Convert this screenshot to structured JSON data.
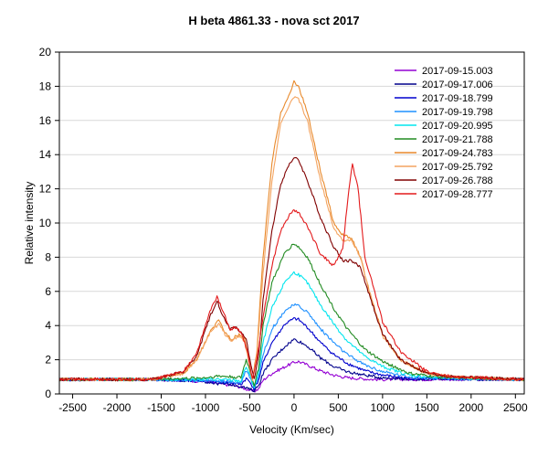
{
  "chart_data": {
    "type": "line",
    "title": "H beta  4861.33 - nova sct 2017",
    "xlabel": "Velocity (Km/sec)",
    "ylabel": "Relative intensity",
    "xlim": [
      -2650,
      2600
    ],
    "ylim": [
      0,
      20
    ],
    "xticks": [
      -2500,
      -2000,
      -1500,
      -1000,
      -500,
      0,
      500,
      1000,
      1500,
      2000,
      2500
    ],
    "xtick_labels": [
      "-2500",
      "-2000",
      "-1500",
      "-1000",
      "-500",
      "0",
      "500",
      "1000",
      "1500",
      "2000",
      "2500"
    ],
    "yticks": [
      0,
      2,
      4,
      6,
      8,
      10,
      12,
      14,
      16,
      18,
      20
    ],
    "ytick_labels": [
      "0",
      "2",
      "4",
      "6",
      "8",
      "10",
      "12",
      "14",
      "16",
      "18",
      "20"
    ],
    "legend_position": "top-right",
    "series": [
      {
        "name": "2017-09-15.003",
        "color": "#9400d3",
        "points": [
          [
            -2650,
            0.85
          ],
          [
            -1600,
            0.85
          ],
          [
            -1250,
            0.8
          ],
          [
            -1000,
            0.72
          ],
          [
            -850,
            0.6
          ],
          [
            -700,
            0.5
          ],
          [
            -600,
            0.4
          ],
          [
            -520,
            0.25
          ],
          [
            -450,
            0.15
          ],
          [
            -400,
            0.3
          ],
          [
            -350,
            0.8
          ],
          [
            -250,
            1.2
          ],
          [
            -100,
            1.6
          ],
          [
            0,
            1.85
          ],
          [
            50,
            1.9
          ],
          [
            150,
            1.7
          ],
          [
            300,
            1.35
          ],
          [
            450,
            1.1
          ],
          [
            600,
            0.95
          ],
          [
            900,
            0.85
          ],
          [
            2600,
            0.85
          ]
        ]
      },
      {
        "name": "2017-09-17.006",
        "color": "#00008b",
        "points": [
          [
            -2650,
            0.85
          ],
          [
            -1600,
            0.85
          ],
          [
            -1250,
            0.8
          ],
          [
            -1000,
            0.72
          ],
          [
            -850,
            0.6
          ],
          [
            -700,
            0.55
          ],
          [
            -600,
            0.45
          ],
          [
            -520,
            0.3
          ],
          [
            -450,
            0.2
          ],
          [
            -400,
            0.5
          ],
          [
            -350,
            1.2
          ],
          [
            -250,
            2.0
          ],
          [
            -100,
            2.8
          ],
          [
            0,
            3.2
          ],
          [
            50,
            3.1
          ],
          [
            150,
            2.8
          ],
          [
            300,
            2.1
          ],
          [
            450,
            1.6
          ],
          [
            600,
            1.3
          ],
          [
            800,
            1.1
          ],
          [
            1000,
            0.95
          ],
          [
            1300,
            0.88
          ],
          [
            2600,
            0.85
          ]
        ]
      },
      {
        "name": "2017-09-18.799",
        "color": "#0000cd",
        "points": [
          [
            -2650,
            0.85
          ],
          [
            -1600,
            0.85
          ],
          [
            -1250,
            0.8
          ],
          [
            -1000,
            0.75
          ],
          [
            -850,
            0.7
          ],
          [
            -700,
            0.65
          ],
          [
            -600,
            0.55
          ],
          [
            -540,
            0.9
          ],
          [
            -500,
            0.7
          ],
          [
            -450,
            0.3
          ],
          [
            -400,
            0.8
          ],
          [
            -350,
            1.8
          ],
          [
            -250,
            3.0
          ],
          [
            -100,
            4.1
          ],
          [
            0,
            4.4
          ],
          [
            50,
            4.35
          ],
          [
            150,
            3.9
          ],
          [
            300,
            3.0
          ],
          [
            450,
            2.3
          ],
          [
            600,
            1.8
          ],
          [
            800,
            1.35
          ],
          [
            1000,
            1.1
          ],
          [
            1300,
            0.9
          ],
          [
            2600,
            0.85
          ]
        ]
      },
      {
        "name": "2017-09-19.798",
        "color": "#1e90ff",
        "points": [
          [
            -2650,
            0.85
          ],
          [
            -1600,
            0.85
          ],
          [
            -1250,
            0.8
          ],
          [
            -1000,
            0.8
          ],
          [
            -850,
            0.75
          ],
          [
            -700,
            0.7
          ],
          [
            -600,
            0.65
          ],
          [
            -540,
            1.4
          ],
          [
            -500,
            1.0
          ],
          [
            -450,
            0.4
          ],
          [
            -400,
            1.0
          ],
          [
            -350,
            2.3
          ],
          [
            -250,
            3.8
          ],
          [
            -100,
            4.9
          ],
          [
            0,
            5.2
          ],
          [
            50,
            5.15
          ],
          [
            150,
            4.8
          ],
          [
            300,
            3.8
          ],
          [
            450,
            3.0
          ],
          [
            600,
            2.3
          ],
          [
            800,
            1.7
          ],
          [
            1000,
            1.3
          ],
          [
            1300,
            1.0
          ],
          [
            1600,
            0.9
          ],
          [
            2600,
            0.85
          ]
        ]
      },
      {
        "name": "2017-09-20.995",
        "color": "#00e5ee",
        "points": [
          [
            -2650,
            0.85
          ],
          [
            -1600,
            0.85
          ],
          [
            -1250,
            0.85
          ],
          [
            -1000,
            0.85
          ],
          [
            -850,
            0.85
          ],
          [
            -700,
            0.8
          ],
          [
            -600,
            0.75
          ],
          [
            -540,
            1.6
          ],
          [
            -500,
            1.1
          ],
          [
            -450,
            0.4
          ],
          [
            -400,
            1.2
          ],
          [
            -350,
            3.0
          ],
          [
            -250,
            5.0
          ],
          [
            -100,
            6.6
          ],
          [
            0,
            7.1
          ],
          [
            50,
            7.0
          ],
          [
            150,
            6.5
          ],
          [
            300,
            5.2
          ],
          [
            450,
            4.1
          ],
          [
            600,
            3.1
          ],
          [
            800,
            2.2
          ],
          [
            1000,
            1.6
          ],
          [
            1300,
            1.1
          ],
          [
            1600,
            0.95
          ],
          [
            2600,
            0.85
          ]
        ]
      },
      {
        "name": "2017-09-21.788",
        "color": "#228b22",
        "points": [
          [
            -2650,
            0.85
          ],
          [
            -1600,
            0.85
          ],
          [
            -1250,
            0.9
          ],
          [
            -1000,
            0.95
          ],
          [
            -850,
            1.05
          ],
          [
            -700,
            1.0
          ],
          [
            -600,
            0.95
          ],
          [
            -540,
            2.0
          ],
          [
            -500,
            1.4
          ],
          [
            -450,
            0.5
          ],
          [
            -400,
            1.5
          ],
          [
            -350,
            4.0
          ],
          [
            -250,
            6.5
          ],
          [
            -100,
            8.3
          ],
          [
            0,
            8.8
          ],
          [
            50,
            8.6
          ],
          [
            150,
            8.0
          ],
          [
            300,
            6.4
          ],
          [
            450,
            5.0
          ],
          [
            600,
            3.8
          ],
          [
            800,
            2.6
          ],
          [
            1000,
            1.9
          ],
          [
            1300,
            1.2
          ],
          [
            1600,
            1.0
          ],
          [
            2600,
            0.85
          ]
        ]
      },
      {
        "name": "2017-09-24.783",
        "color": "#e8892b",
        "points": [
          [
            -2650,
            0.85
          ],
          [
            -1600,
            0.85
          ],
          [
            -1250,
            1.2
          ],
          [
            -1100,
            2.0
          ],
          [
            -950,
            3.6
          ],
          [
            -850,
            4.3
          ],
          [
            -780,
            3.6
          ],
          [
            -700,
            3.2
          ],
          [
            -620,
            3.5
          ],
          [
            -560,
            3.2
          ],
          [
            -520,
            2.2
          ],
          [
            -470,
            0.8
          ],
          [
            -420,
            2.5
          ],
          [
            -350,
            8.0
          ],
          [
            -250,
            13.5
          ],
          [
            -150,
            16.5
          ],
          [
            -50,
            17.5
          ],
          [
            0,
            18.3
          ],
          [
            50,
            18.0
          ],
          [
            150,
            16.5
          ],
          [
            300,
            13.0
          ],
          [
            450,
            10.0
          ],
          [
            550,
            9.3
          ],
          [
            650,
            9.1
          ],
          [
            750,
            8.0
          ],
          [
            850,
            6.0
          ],
          [
            1000,
            3.5
          ],
          [
            1200,
            2.0
          ],
          [
            1500,
            1.2
          ],
          [
            1800,
            1.0
          ],
          [
            2600,
            0.85
          ]
        ]
      },
      {
        "name": "2017-09-25.792",
        "color": "#f4a460",
        "points": [
          [
            -2650,
            0.85
          ],
          [
            -1600,
            0.85
          ],
          [
            -1250,
            1.2
          ],
          [
            -1100,
            2.0
          ],
          [
            -950,
            3.6
          ],
          [
            -850,
            4.1
          ],
          [
            -780,
            3.5
          ],
          [
            -700,
            3.1
          ],
          [
            -620,
            3.4
          ],
          [
            -560,
            3.1
          ],
          [
            -520,
            2.1
          ],
          [
            -470,
            0.8
          ],
          [
            -420,
            2.3
          ],
          [
            -350,
            7.0
          ],
          [
            -250,
            12.5
          ],
          [
            -150,
            15.8
          ],
          [
            -50,
            16.9
          ],
          [
            0,
            17.4
          ],
          [
            50,
            17.3
          ],
          [
            150,
            16.0
          ],
          [
            300,
            12.5
          ],
          [
            450,
            9.7
          ],
          [
            550,
            9.0
          ],
          [
            650,
            9.0
          ],
          [
            750,
            8.0
          ],
          [
            850,
            6.0
          ],
          [
            1000,
            3.4
          ],
          [
            1200,
            2.0
          ],
          [
            1500,
            1.2
          ],
          [
            1800,
            1.0
          ],
          [
            2600,
            0.85
          ]
        ]
      },
      {
        "name": "2017-09-26.788",
        "color": "#800000",
        "points": [
          [
            -2650,
            0.85
          ],
          [
            -1600,
            0.85
          ],
          [
            -1250,
            1.3
          ],
          [
            -1100,
            2.2
          ],
          [
            -950,
            4.5
          ],
          [
            -870,
            5.5
          ],
          [
            -800,
            4.5
          ],
          [
            -720,
            3.8
          ],
          [
            -650,
            3.9
          ],
          [
            -600,
            3.6
          ],
          [
            -540,
            3.2
          ],
          [
            -500,
            2.0
          ],
          [
            -450,
            0.9
          ],
          [
            -400,
            2.2
          ],
          [
            -350,
            5.5
          ],
          [
            -250,
            9.5
          ],
          [
            -150,
            12.3
          ],
          [
            -50,
            13.5
          ],
          [
            0,
            13.8
          ],
          [
            50,
            13.7
          ],
          [
            150,
            12.5
          ],
          [
            300,
            10.3
          ],
          [
            450,
            8.6
          ],
          [
            550,
            7.8
          ],
          [
            650,
            7.8
          ],
          [
            750,
            7.4
          ],
          [
            850,
            5.8
          ],
          [
            1000,
            3.5
          ],
          [
            1200,
            2.0
          ],
          [
            1500,
            1.2
          ],
          [
            1800,
            1.0
          ],
          [
            2600,
            0.85
          ]
        ]
      },
      {
        "name": "2017-09-28.777",
        "color": "#e31a1c",
        "points": [
          [
            -2650,
            0.85
          ],
          [
            -1600,
            0.85
          ],
          [
            -1250,
            1.3
          ],
          [
            -1100,
            2.4
          ],
          [
            -950,
            4.8
          ],
          [
            -870,
            5.7
          ],
          [
            -800,
            4.8
          ],
          [
            -720,
            3.8
          ],
          [
            -650,
            3.9
          ],
          [
            -580,
            3.4
          ],
          [
            -520,
            2.3
          ],
          [
            -470,
            0.9
          ],
          [
            -420,
            2.0
          ],
          [
            -350,
            4.5
          ],
          [
            -250,
            7.5
          ],
          [
            -150,
            9.5
          ],
          [
            -50,
            10.5
          ],
          [
            0,
            10.7
          ],
          [
            50,
            10.6
          ],
          [
            150,
            9.8
          ],
          [
            300,
            8.2
          ],
          [
            450,
            7.5
          ],
          [
            550,
            8.5
          ],
          [
            620,
            12.0
          ],
          [
            660,
            13.4
          ],
          [
            720,
            12.2
          ],
          [
            800,
            8.0
          ],
          [
            900,
            6.2
          ],
          [
            1000,
            4.2
          ],
          [
            1200,
            2.5
          ],
          [
            1500,
            1.3
          ],
          [
            1800,
            1.0
          ],
          [
            2600,
            0.85
          ]
        ]
      }
    ]
  }
}
